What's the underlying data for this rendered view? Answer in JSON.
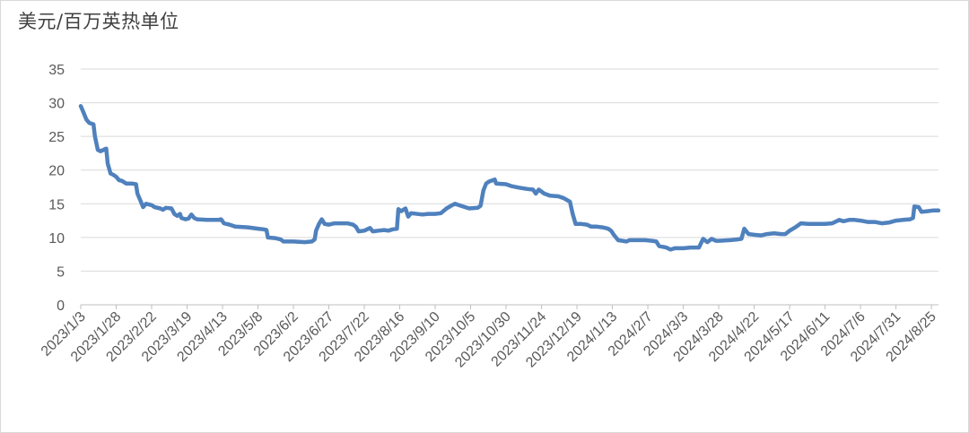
{
  "chart_data": {
    "type": "line",
    "title": "",
    "unit_label": "美元/百万英热单位",
    "xlabel": "",
    "ylabel": "",
    "ylim": [
      0,
      35
    ],
    "yticks": [
      0,
      5,
      10,
      15,
      20,
      25,
      30,
      35
    ],
    "x_range": [
      "2023/1/3",
      "2024/8/30"
    ],
    "grid": "horizontal",
    "legend": "none",
    "line_color": "#4f81bd",
    "x_tick_labels": [
      "2023/1/3",
      "2023/1/28",
      "2023/2/22",
      "2023/3/19",
      "2023/4/13",
      "2023/5/8",
      "2023/6/2",
      "2023/6/27",
      "2023/7/22",
      "2023/8/16",
      "2023/9/10",
      "2023/10/5",
      "2023/10/30",
      "2023/11/24",
      "2023/12/19",
      "2024/1/13",
      "2024/2/7",
      "2024/3/3",
      "2024/3/28",
      "2024/4/22",
      "2024/5/17",
      "2024/6/11",
      "2024/7/6",
      "2024/7/31",
      "2024/8/25"
    ],
    "series": [
      {
        "points": [
          [
            "2023/1/3",
            29.5
          ],
          [
            "2023/1/5",
            28.5
          ],
          [
            "2023/1/7",
            27.5
          ],
          [
            "2023/1/9",
            27.0
          ],
          [
            "2023/1/12",
            26.8
          ],
          [
            "2023/1/13",
            25.0
          ],
          [
            "2023/1/15",
            23.0
          ],
          [
            "2023/1/17",
            22.8
          ],
          [
            "2023/1/19",
            23.0
          ],
          [
            "2023/1/21",
            23.2
          ],
          [
            "2023/1/22",
            21.0
          ],
          [
            "2023/1/24",
            19.5
          ],
          [
            "2023/1/26",
            19.3
          ],
          [
            "2023/1/28",
            19.0
          ],
          [
            "2023/1/30",
            18.5
          ],
          [
            "2023/2/1",
            18.4
          ],
          [
            "2023/2/4",
            18.0
          ],
          [
            "2023/2/8",
            18.0
          ],
          [
            "2023/2/11",
            17.9
          ],
          [
            "2023/2/12",
            16.5
          ],
          [
            "2023/2/14",
            15.5
          ],
          [
            "2023/2/16",
            14.5
          ],
          [
            "2023/2/18",
            15.0
          ],
          [
            "2023/2/22",
            14.8
          ],
          [
            "2023/2/24",
            14.5
          ],
          [
            "2023/2/28",
            14.3
          ],
          [
            "2023/3/2",
            14.1
          ],
          [
            "2023/3/4",
            14.4
          ],
          [
            "2023/3/8",
            14.3
          ],
          [
            "2023/3/10",
            13.5
          ],
          [
            "2023/3/12",
            13.2
          ],
          [
            "2023/3/14",
            13.5
          ],
          [
            "2023/3/15",
            12.9
          ],
          [
            "2023/3/18",
            12.7
          ],
          [
            "2023/3/20",
            12.8
          ],
          [
            "2023/3/22",
            13.4
          ],
          [
            "2023/3/24",
            12.9
          ],
          [
            "2023/3/26",
            12.7
          ],
          [
            "2023/4/2",
            12.6
          ],
          [
            "2023/4/10",
            12.6
          ],
          [
            "2023/4/12",
            12.7
          ],
          [
            "2023/4/14",
            12.1
          ],
          [
            "2023/4/18",
            11.9
          ],
          [
            "2023/4/22",
            11.6
          ],
          [
            "2023/5/1",
            11.5
          ],
          [
            "2023/5/8",
            11.3
          ],
          [
            "2023/5/12",
            11.2
          ],
          [
            "2023/5/14",
            11.1
          ],
          [
            "2023/5/15",
            10.0
          ],
          [
            "2023/5/20",
            9.9
          ],
          [
            "2023/5/24",
            9.7
          ],
          [
            "2023/5/26",
            9.4
          ],
          [
            "2023/6/2",
            9.4
          ],
          [
            "2023/6/10",
            9.3
          ],
          [
            "2023/6/15",
            9.4
          ],
          [
            "2023/6/17",
            9.7
          ],
          [
            "2023/6/18",
            11.0
          ],
          [
            "2023/6/20",
            12.0
          ],
          [
            "2023/6/22",
            12.7
          ],
          [
            "2023/6/24",
            12.0
          ],
          [
            "2023/6/27",
            11.9
          ],
          [
            "2023/7/1",
            12.1
          ],
          [
            "2023/7/5",
            12.1
          ],
          [
            "2023/7/10",
            12.1
          ],
          [
            "2023/7/14",
            11.9
          ],
          [
            "2023/7/16",
            11.6
          ],
          [
            "2023/7/18",
            10.9
          ],
          [
            "2023/7/22",
            11.0
          ],
          [
            "2023/7/26",
            11.4
          ],
          [
            "2023/7/28",
            10.9
          ],
          [
            "2023/8/1",
            11.0
          ],
          [
            "2023/8/5",
            11.1
          ],
          [
            "2023/8/8",
            11.0
          ],
          [
            "2023/8/11",
            11.2
          ],
          [
            "2023/8/14",
            11.3
          ],
          [
            "2023/8/15",
            14.2
          ],
          [
            "2023/8/17",
            13.9
          ],
          [
            "2023/8/20",
            14.3
          ],
          [
            "2023/8/22",
            13.1
          ],
          [
            "2023/8/24",
            13.6
          ],
          [
            "2023/9/1",
            13.4
          ],
          [
            "2023/9/5",
            13.5
          ],
          [
            "2023/9/10",
            13.5
          ],
          [
            "2023/9/14",
            13.6
          ],
          [
            "2023/9/18",
            14.3
          ],
          [
            "2023/9/22",
            14.8
          ],
          [
            "2023/9/24",
            15.0
          ],
          [
            "2023/9/28",
            14.7
          ],
          [
            "2023/10/1",
            14.5
          ],
          [
            "2023/10/4",
            14.3
          ],
          [
            "2023/10/10",
            14.4
          ],
          [
            "2023/10/12",
            14.7
          ],
          [
            "2023/10/14",
            17.0
          ],
          [
            "2023/10/16",
            18.0
          ],
          [
            "2023/10/18",
            18.3
          ],
          [
            "2023/10/22",
            18.6
          ],
          [
            "2023/10/23",
            18.0
          ],
          [
            "2023/10/30",
            17.9
          ],
          [
            "2023/11/3",
            17.6
          ],
          [
            "2023/11/8",
            17.4
          ],
          [
            "2023/11/14",
            17.2
          ],
          [
            "2023/11/18",
            17.1
          ],
          [
            "2023/11/20",
            16.5
          ],
          [
            "2023/11/22",
            17.1
          ],
          [
            "2023/11/26",
            16.5
          ],
          [
            "2023/11/30",
            16.2
          ],
          [
            "2023/12/6",
            16.1
          ],
          [
            "2023/12/10",
            15.8
          ],
          [
            "2023/12/14",
            15.3
          ],
          [
            "2023/12/16",
            13.5
          ],
          [
            "2023/12/18",
            12.0
          ],
          [
            "2023/12/22",
            12.0
          ],
          [
            "2023/12/26",
            11.9
          ],
          [
            "2023/12/29",
            11.6
          ],
          [
            "2024/1/2",
            11.6
          ],
          [
            "2024/1/6",
            11.5
          ],
          [
            "2024/1/10",
            11.3
          ],
          [
            "2024/1/12",
            11.0
          ],
          [
            "2024/1/14",
            10.4
          ],
          [
            "2024/1/17",
            9.6
          ],
          [
            "2024/1/20",
            9.5
          ],
          [
            "2024/1/23",
            9.4
          ],
          [
            "2024/1/25",
            9.6
          ],
          [
            "2024/1/30",
            9.6
          ],
          [
            "2024/2/5",
            9.6
          ],
          [
            "2024/2/10",
            9.5
          ],
          [
            "2024/2/13",
            9.4
          ],
          [
            "2024/2/15",
            8.7
          ],
          [
            "2024/2/20",
            8.5
          ],
          [
            "2024/2/23",
            8.2
          ],
          [
            "2024/2/26",
            8.4
          ],
          [
            "2024/3/3",
            8.4
          ],
          [
            "2024/3/8",
            8.5
          ],
          [
            "2024/3/14",
            8.5
          ],
          [
            "2024/3/17",
            9.8
          ],
          [
            "2024/3/20",
            9.3
          ],
          [
            "2024/3/23",
            9.8
          ],
          [
            "2024/3/26",
            9.5
          ],
          [
            "2024/3/28",
            9.5
          ],
          [
            "2024/4/5",
            9.6
          ],
          [
            "2024/4/10",
            9.7
          ],
          [
            "2024/4/13",
            9.8
          ],
          [
            "2024/4/15",
            11.3
          ],
          [
            "2024/4/18",
            10.5
          ],
          [
            "2024/4/22",
            10.4
          ],
          [
            "2024/4/27",
            10.3
          ],
          [
            "2024/5/1",
            10.5
          ],
          [
            "2024/5/6",
            10.6
          ],
          [
            "2024/5/11",
            10.5
          ],
          [
            "2024/5/14",
            10.5
          ],
          [
            "2024/5/17",
            11.0
          ],
          [
            "2024/5/21",
            11.5
          ],
          [
            "2024/5/25",
            12.1
          ],
          [
            "2024/5/30",
            12.0
          ],
          [
            "2024/6/5",
            12.0
          ],
          [
            "2024/6/11",
            12.0
          ],
          [
            "2024/6/16",
            12.1
          ],
          [
            "2024/6/21",
            12.6
          ],
          [
            "2024/6/24",
            12.4
          ],
          [
            "2024/6/28",
            12.6
          ],
          [
            "2024/7/2",
            12.6
          ],
          [
            "2024/7/6",
            12.5
          ],
          [
            "2024/7/11",
            12.3
          ],
          [
            "2024/7/16",
            12.3
          ],
          [
            "2024/7/21",
            12.1
          ],
          [
            "2024/7/26",
            12.2
          ],
          [
            "2024/7/31",
            12.5
          ],
          [
            "2024/8/5",
            12.6
          ],
          [
            "2024/8/10",
            12.7
          ],
          [
            "2024/8/12",
            12.9
          ],
          [
            "2024/8/13",
            14.6
          ],
          [
            "2024/8/16",
            14.5
          ],
          [
            "2024/8/18",
            13.8
          ],
          [
            "2024/8/22",
            13.9
          ],
          [
            "2024/8/26",
            14.0
          ],
          [
            "2024/8/30",
            14.0
          ]
        ]
      }
    ]
  }
}
